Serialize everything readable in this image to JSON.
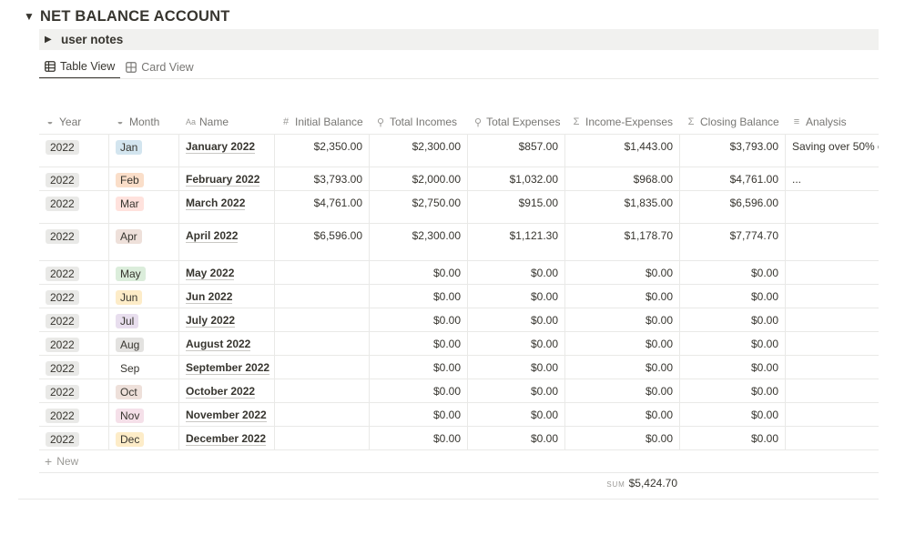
{
  "header": {
    "toggle_glyph": "▼",
    "title": "NET BALANCE ACCOUNT"
  },
  "notes": {
    "toggle_glyph": "▶",
    "label": "user notes"
  },
  "tabs": [
    {
      "label": "Table View",
      "icon": "table-icon",
      "active": true
    },
    {
      "label": "Card View",
      "icon": "grid-icon",
      "active": false
    }
  ],
  "columns": [
    {
      "label": "Year",
      "icon": "select-icon"
    },
    {
      "label": "Month",
      "icon": "select-icon"
    },
    {
      "label": "Name",
      "icon": "text-title-icon"
    },
    {
      "label": "Initial Balance",
      "icon": "hash-icon"
    },
    {
      "label": "Total Incomes",
      "icon": "search-icon"
    },
    {
      "label": "Total Expenses",
      "icon": "search-icon"
    },
    {
      "label": "Income-Expenses",
      "icon": "sigma-icon"
    },
    {
      "label": "Closing Balance",
      "icon": "sigma-icon"
    },
    {
      "label": "Analysis",
      "icon": "text-lines-icon"
    }
  ],
  "month_colors": {
    "Jan": "#d3e5ef",
    "Feb": "#fadec9",
    "Mar": "#ffe2dd",
    "Apr": "#eee0da",
    "May": "#dbeddb",
    "Jun": "#fdecc8",
    "Jul": "#e8deee",
    "Aug": "#e3e2e0",
    "Sep": "#ffffff",
    "Oct": "#eee0da",
    "Nov": "#f5e0e9",
    "Dec": "#fdecc8"
  },
  "rows": [
    {
      "year": "2022",
      "month": "Jan",
      "name": "January 2022",
      "initial": "$2,350.00",
      "incomes": "$2,300.00",
      "expenses": "$857.00",
      "ie": "$1,443.00",
      "closing": "$3,793.00",
      "analysis": "Saving over 50% o"
    },
    {
      "year": "2022",
      "month": "Feb",
      "name": "February 2022",
      "initial": "$3,793.00",
      "incomes": "$2,000.00",
      "expenses": "$1,032.00",
      "ie": "$968.00",
      "closing": "$4,761.00",
      "analysis": "..."
    },
    {
      "year": "2022",
      "month": "Mar",
      "name": "March 2022",
      "initial": "$4,761.00",
      "incomes": "$2,750.00",
      "expenses": "$915.00",
      "ie": "$1,835.00",
      "closing": "$6,596.00",
      "analysis": ""
    },
    {
      "year": "2022",
      "month": "Apr",
      "name": "April 2022",
      "initial": "$6,596.00",
      "incomes": "$2,300.00",
      "expenses": "$1,121.30",
      "ie": "$1,178.70",
      "closing": "$7,774.70",
      "analysis": ""
    },
    {
      "year": "2022",
      "month": "May",
      "name": "May 2022",
      "initial": "",
      "incomes": "$0.00",
      "expenses": "$0.00",
      "ie": "$0.00",
      "closing": "$0.00",
      "analysis": ""
    },
    {
      "year": "2022",
      "month": "Jun",
      "name": "Jun 2022",
      "initial": "",
      "incomes": "$0.00",
      "expenses": "$0.00",
      "ie": "$0.00",
      "closing": "$0.00",
      "analysis": ""
    },
    {
      "year": "2022",
      "month": "Jul",
      "name": "July 2022",
      "initial": "",
      "incomes": "$0.00",
      "expenses": "$0.00",
      "ie": "$0.00",
      "closing": "$0.00",
      "analysis": ""
    },
    {
      "year": "2022",
      "month": "Aug",
      "name": "August 2022",
      "initial": "",
      "incomes": "$0.00",
      "expenses": "$0.00",
      "ie": "$0.00",
      "closing": "$0.00",
      "analysis": ""
    },
    {
      "year": "2022",
      "month": "Sep",
      "name": "September 2022",
      "initial": "",
      "incomes": "$0.00",
      "expenses": "$0.00",
      "ie": "$0.00",
      "closing": "$0.00",
      "analysis": ""
    },
    {
      "year": "2022",
      "month": "Oct",
      "name": "October 2022",
      "initial": "",
      "incomes": "$0.00",
      "expenses": "$0.00",
      "ie": "$0.00",
      "closing": "$0.00",
      "analysis": ""
    },
    {
      "year": "2022",
      "month": "Nov",
      "name": "November 2022",
      "initial": "",
      "incomes": "$0.00",
      "expenses": "$0.00",
      "ie": "$0.00",
      "closing": "$0.00",
      "analysis": ""
    },
    {
      "year": "2022",
      "month": "Dec",
      "name": "December 2022",
      "initial": "",
      "incomes": "$0.00",
      "expenses": "$0.00",
      "ie": "$0.00",
      "closing": "$0.00",
      "analysis": ""
    }
  ],
  "new_row": {
    "plus": "+",
    "label": "New"
  },
  "footer": {
    "sum_label": "SUM",
    "sum_value": "$5,424.70"
  }
}
